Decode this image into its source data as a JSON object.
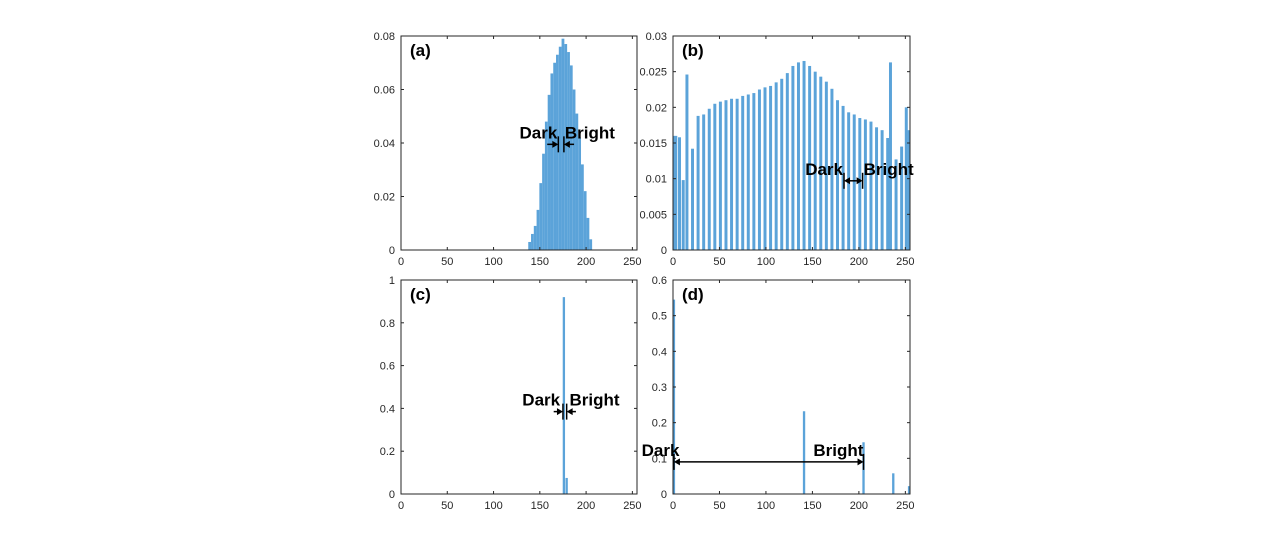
{
  "chart_data": [
    {
      "type": "bar",
      "panel": "(a)",
      "xlim": [
        0,
        255
      ],
      "ylim": [
        0,
        0.08
      ],
      "xticks": [
        0,
        50,
        100,
        150,
        200,
        250
      ],
      "yticks": [
        0,
        0.02,
        0.04,
        0.06,
        0.08
      ],
      "x": [
        139,
        142,
        145,
        148,
        151,
        154,
        157,
        160,
        163,
        166,
        169,
        172,
        175,
        178,
        181,
        184,
        187,
        190,
        193,
        196,
        199,
        202,
        205
      ],
      "values": [
        0.003,
        0.006,
        0.009,
        0.015,
        0.025,
        0.036,
        0.048,
        0.058,
        0.066,
        0.07,
        0.073,
        0.076,
        0.079,
        0.077,
        0.074,
        0.069,
        0.06,
        0.051,
        0.042,
        0.032,
        0.022,
        0.012,
        0.004
      ],
      "bar_width": 3,
      "annotations": [
        {
          "text": "Dark",
          "side": "left",
          "x": 170
        },
        {
          "text": "Bright",
          "side": "right",
          "x": 176
        }
      ],
      "arrow": {
        "x1": 158,
        "x2": 187,
        "gap": [
          170,
          176
        ],
        "y": 0.0395,
        "tick_x": [
          170,
          176
        ],
        "style": "inward"
      }
    },
    {
      "type": "bar",
      "panel": "(b)",
      "xlim": [
        0,
        255
      ],
      "ylim": [
        0,
        0.03
      ],
      "xticks": [
        0,
        50,
        100,
        150,
        200,
        250
      ],
      "yticks": [
        0,
        0.005,
        0.01,
        0.015,
        0.02,
        0.025,
        0.03
      ],
      "x": [
        0,
        3,
        7,
        11,
        15,
        21,
        27,
        33,
        39,
        45,
        51,
        57,
        63,
        69,
        75,
        81,
        87,
        93,
        99,
        105,
        111,
        117,
        123,
        129,
        135,
        141,
        147,
        153,
        159,
        165,
        171,
        177,
        183,
        189,
        195,
        201,
        207,
        213,
        219,
        225,
        231,
        234,
        240,
        246,
        251,
        254
      ],
      "values": [
        0.016,
        0.016,
        0.0158,
        0.0098,
        0.0246,
        0.0142,
        0.0188,
        0.019,
        0.0198,
        0.0205,
        0.0208,
        0.021,
        0.0212,
        0.0212,
        0.0216,
        0.0218,
        0.022,
        0.0225,
        0.0228,
        0.023,
        0.0235,
        0.024,
        0.0248,
        0.0258,
        0.0263,
        0.0265,
        0.0258,
        0.025,
        0.0243,
        0.0236,
        0.0226,
        0.021,
        0.0202,
        0.0193,
        0.019,
        0.0185,
        0.0183,
        0.018,
        0.0172,
        0.0168,
        0.0157,
        0.0263,
        0.0127,
        0.0145,
        0.02,
        0.0168
      ],
      "bar_width": 3.2,
      "annotations": [
        {
          "text": "Dark",
          "side": "left",
          "x": 184
        },
        {
          "text": "Bright",
          "side": "right",
          "x": 204
        }
      ],
      "arrow": {
        "x1": 184,
        "x2": 204,
        "y": 0.0097,
        "tick_x": [
          184,
          204
        ],
        "style": "outward"
      }
    },
    {
      "type": "bar",
      "panel": "(c)",
      "xlim": [
        0,
        255
      ],
      "ylim": [
        0,
        1
      ],
      "xticks": [
        0,
        50,
        100,
        150,
        200,
        250
      ],
      "yticks": [
        0,
        0.2,
        0.4,
        0.6,
        0.8,
        1
      ],
      "x": [
        176,
        179
      ],
      "values": [
        0.92,
        0.075
      ],
      "bar_width": 2.5,
      "annotations": [
        {
          "text": "Dark",
          "side": "left",
          "x": 173
        },
        {
          "text": "Bright",
          "side": "right",
          "x": 181
        }
      ],
      "arrow": {
        "x1": 165,
        "x2": 189,
        "gap": [
          175,
          179
        ],
        "y": 0.385,
        "tick_x": [
          175,
          179
        ],
        "style": "inward"
      }
    },
    {
      "type": "bar",
      "panel": "(d)",
      "xlim": [
        0,
        255
      ],
      "ylim": [
        0,
        0.6
      ],
      "xticks": [
        0,
        50,
        100,
        150,
        200,
        250
      ],
      "yticks": [
        0,
        0.1,
        0.2,
        0.3,
        0.4,
        0.5,
        0.6
      ],
      "x": [
        1,
        141,
        205,
        237,
        254
      ],
      "values": [
        0.545,
        0.232,
        0.145,
        0.058,
        0.022
      ],
      "bar_width": 2.5,
      "annotations": [
        {
          "text": "Dark",
          "side": "left",
          "x": 8
        },
        {
          "text": "Bright",
          "side": "right",
          "x": 150
        }
      ],
      "arrow": {
        "x1": 1,
        "x2": 205,
        "y": 0.09,
        "tick_x": [
          1,
          205
        ],
        "style": "outward"
      }
    }
  ]
}
